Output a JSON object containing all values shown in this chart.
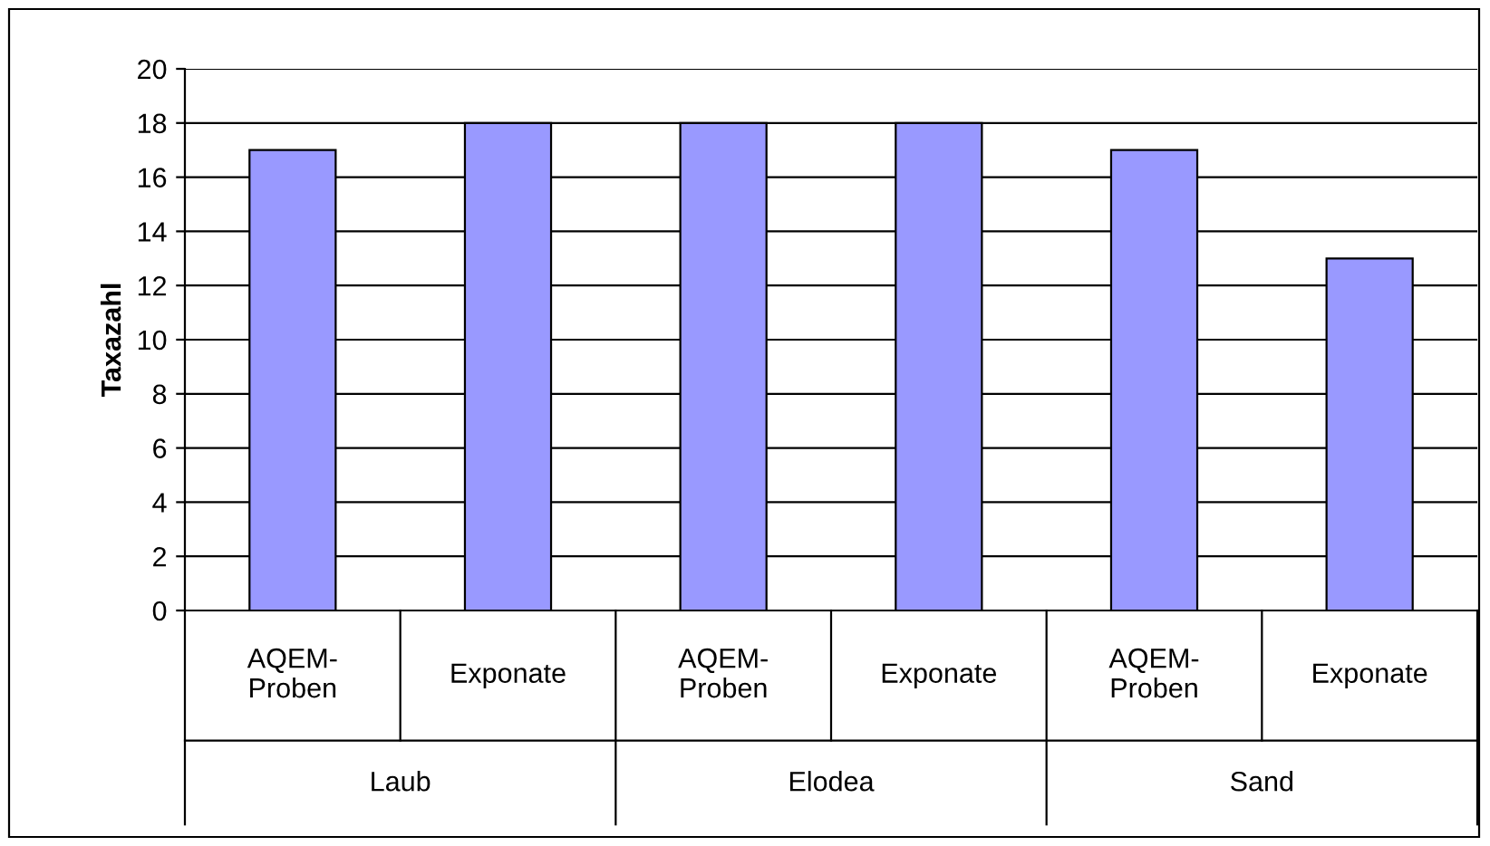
{
  "chart_data": {
    "type": "bar",
    "ylabel": "Taxazahl",
    "categories": [
      "AQEM-Proben",
      "Exponate",
      "AQEM-Proben",
      "Exponate",
      "AQEM-Proben",
      "Exponate"
    ],
    "annotations": [
      "Laub",
      "Elodea",
      "Sand"
    ],
    "values": [
      17,
      18,
      18,
      18,
      17,
      13
    ],
    "color": "#9999ff",
    "ylim": [
      0,
      20
    ],
    "yticks": [
      0,
      2,
      4,
      6,
      8,
      10,
      12,
      14,
      16,
      18,
      20
    ],
    "grid": "y",
    "legend": false
  }
}
